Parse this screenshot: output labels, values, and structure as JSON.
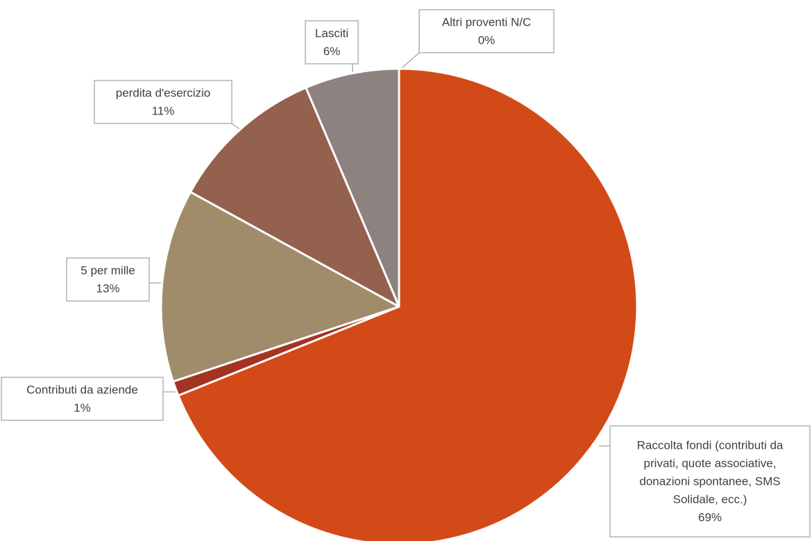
{
  "chart_data": {
    "type": "pie",
    "title": "",
    "slices": [
      {
        "name": "Raccolta fondi (contributi da privati, quote associative, donazioni spontanee, SMS Solidale, ecc.)",
        "percent_label": "69%",
        "value": 68.9,
        "color": "#d24a17"
      },
      {
        "name": "Contributi da aziende",
        "percent_label": "1%",
        "value": 1.0,
        "color": "#a33424"
      },
      {
        "name": "5 per mille",
        "percent_label": "13%",
        "value": 13.1,
        "color": "#a08c6b"
      },
      {
        "name": "perdita d'esercizio",
        "percent_label": "11%",
        "value": 10.6,
        "color": "#94614f"
      },
      {
        "name": "Lasciti",
        "percent_label": "6%",
        "value": 6.4,
        "color": "#8e8280"
      },
      {
        "name": "Altri proventi N/C",
        "percent_label": "0%",
        "value": 0.0,
        "color": "#b0b0b0"
      }
    ],
    "data_labels": [
      {
        "lines": [
          "Raccolta fondi (contributi da",
          "privati, quote associative,",
          "donazioni spontanee, SMS",
          "Solidale, ecc.)",
          "69%"
        ]
      },
      {
        "lines": [
          "Contributi da aziende",
          "1%"
        ]
      },
      {
        "lines": [
          "5 per mille",
          "13%"
        ]
      },
      {
        "lines": [
          "perdita d'esercizio",
          "11%"
        ]
      },
      {
        "lines": [
          "Lasciti",
          "6%"
        ]
      },
      {
        "lines": [
          "Altri proventi N/C",
          "0%"
        ]
      }
    ]
  }
}
